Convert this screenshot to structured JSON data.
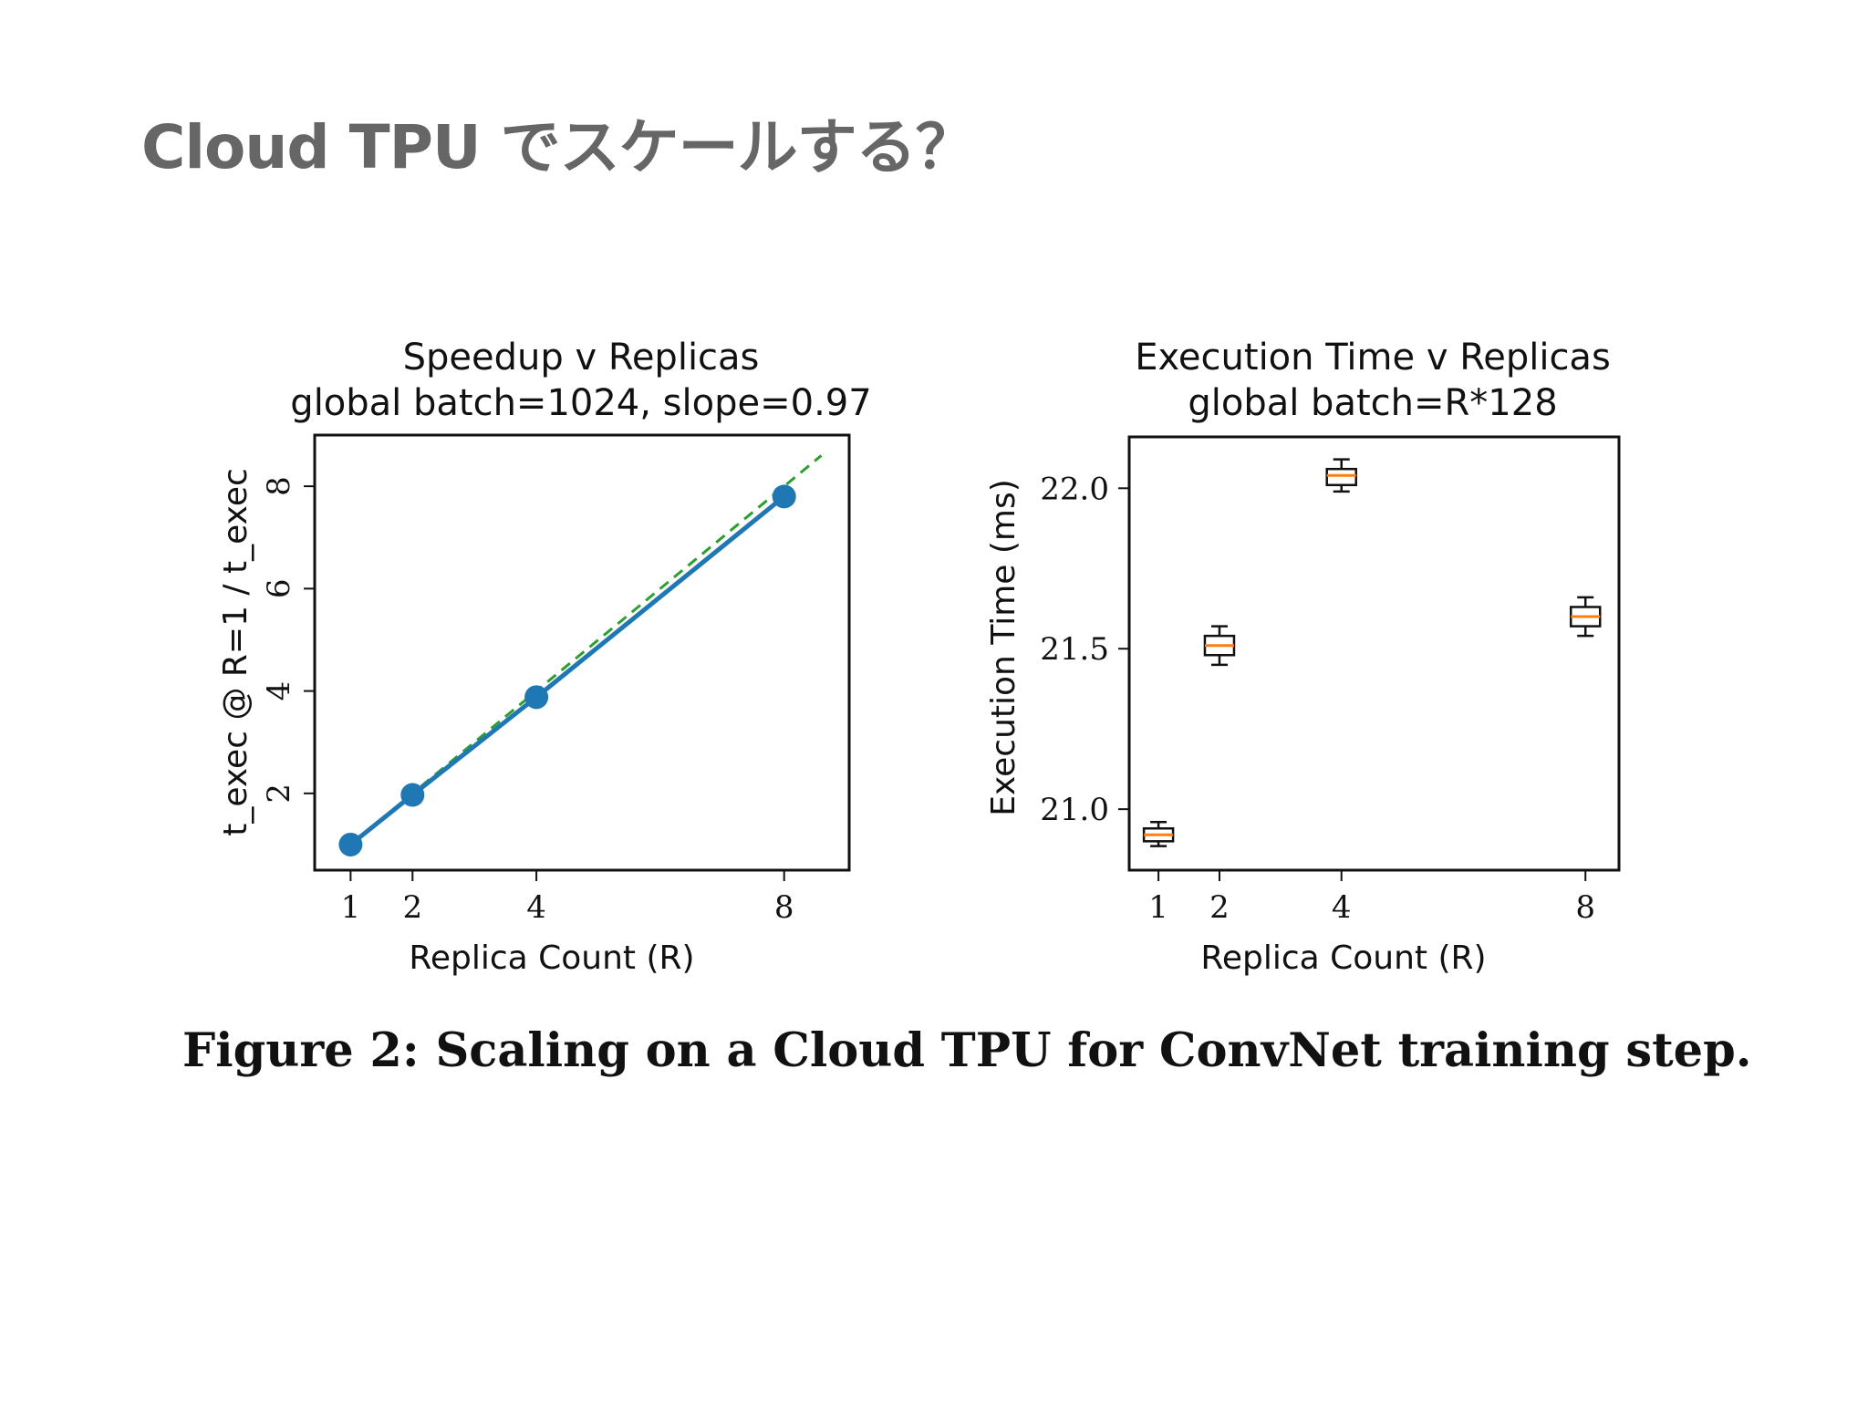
{
  "slide": {
    "title": "Cloud TPU でスケールする？"
  },
  "caption": "Figure 2: Scaling on a Cloud TPU for ConvNet training step.",
  "colors": {
    "speedup_line": "#1f77b4",
    "ideal_line": "#2ca02c",
    "box_median": "#ff7f0e"
  },
  "chart_data": [
    {
      "type": "line",
      "title": "Speedup v Replicas",
      "subtitle": "global batch=1024, slope=0.97",
      "xlabel": "Replica Count (R)",
      "ylabel": "t_exec @ R=1 / t_exec",
      "xticks": [
        1,
        2,
        4,
        8
      ],
      "yticks": [
        2,
        4,
        6,
        8
      ],
      "xlim": [
        0.42,
        9.05
      ],
      "ylim": [
        0.5,
        9.0
      ],
      "series": [
        {
          "style": "solid-with-markers",
          "x": [
            1,
            2,
            4,
            8
          ],
          "y": [
            1.0,
            1.97,
            3.88,
            7.8
          ]
        },
        {
          "style": "dashed",
          "x": [
            1,
            8.6
          ],
          "y": [
            1.0,
            8.6
          ]
        }
      ],
      "grid": false
    },
    {
      "type": "box",
      "title": "Execution Time v Replicas",
      "subtitle": "global batch=R*128",
      "xlabel": "Replica Count (R)",
      "ylabel": "Execution Time (ms)",
      "xticks": [
        1,
        2,
        4,
        8
      ],
      "yticks": [
        21.0,
        21.5,
        22.0
      ],
      "ytick_labels": [
        "21.0",
        "21.5",
        "22.0"
      ],
      "xlim": [
        0.52,
        8.55
      ],
      "ylim": [
        20.81,
        22.16
      ],
      "boxes": [
        {
          "x": 1,
          "whisker_low": 20.885,
          "q1": 20.9,
          "median": 20.92,
          "q3": 20.94,
          "whisker_high": 20.96
        },
        {
          "x": 2,
          "whisker_low": 21.45,
          "q1": 21.48,
          "median": 21.51,
          "q3": 21.54,
          "whisker_high": 21.57
        },
        {
          "x": 4,
          "whisker_low": 21.99,
          "q1": 22.01,
          "median": 22.04,
          "q3": 22.06,
          "whisker_high": 22.09
        },
        {
          "x": 8,
          "whisker_low": 21.54,
          "q1": 21.57,
          "median": 21.6,
          "q3": 21.63,
          "whisker_high": 21.66
        }
      ],
      "grid": false
    }
  ]
}
